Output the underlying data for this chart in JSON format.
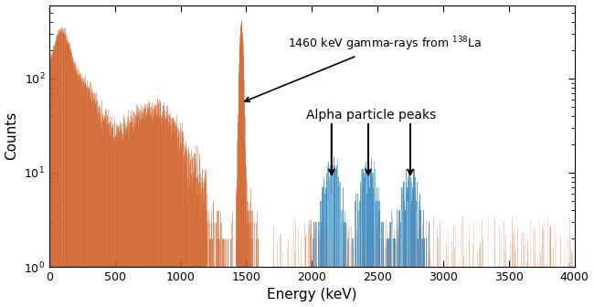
{
  "xlim": [
    0,
    4000
  ],
  "ylim": [
    1.0,
    600
  ],
  "xlabel": "Energy (keV)",
  "ylabel": "Counts",
  "annotation_1460": "1460 keV gamma-rays from $^{138}$La",
  "annotation_alpha": "Alpha particle peaks",
  "alpha_peak_centers": [
    2150,
    2430,
    2750
  ],
  "orange_color": "#D2622A",
  "orange_color_light": "#E8A080",
  "blue_color": "#4A90C4",
  "blue_color_light": "#7AB8D8",
  "background_color": "#FFFFFF",
  "seed": 42
}
